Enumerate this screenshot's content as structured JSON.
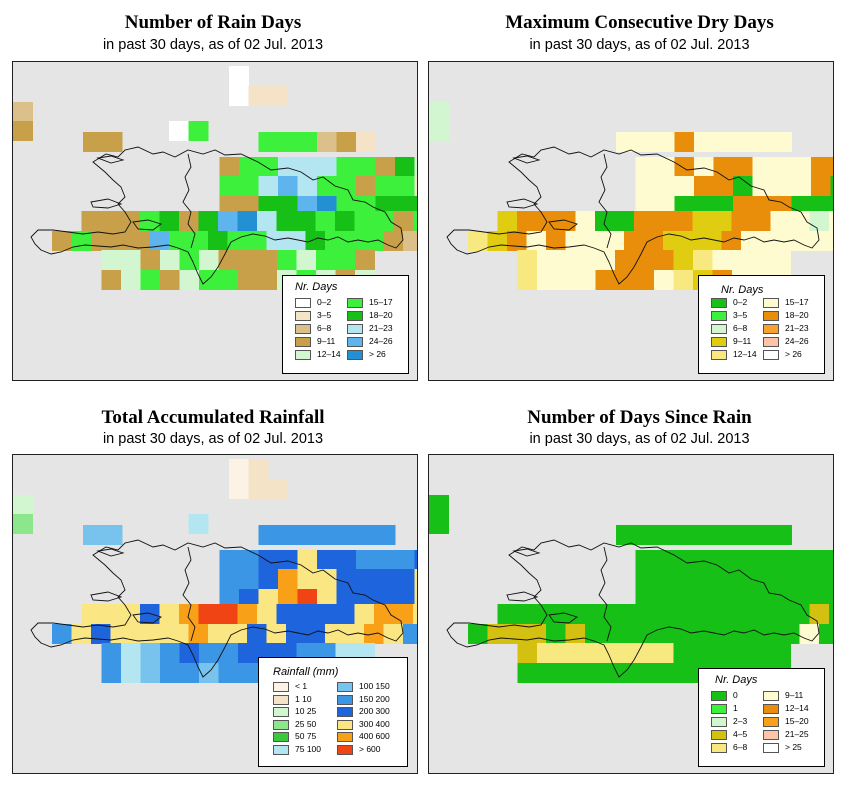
{
  "panels": [
    {
      "id": "rain-days",
      "title": "Number of Rain Days",
      "subtitle": "in past 30 days, as of  02 Jul. 2013",
      "legend": {
        "title": "Nr. Days",
        "items": [
          {
            "label": "0–2",
            "color": "#ffffff"
          },
          {
            "label": "3–5",
            "color": "#f5e3c8"
          },
          {
            "label": "6–8",
            "color": "#dcc089"
          },
          {
            "label": "9–11",
            "color": "#c8a04a"
          },
          {
            "label": "12–14",
            "color": "#d2f7d0"
          },
          {
            "label": "15–17",
            "color": "#3cf03c"
          },
          {
            "label": "18–20",
            "color": "#16c016"
          },
          {
            "label": "21–23",
            "color": "#b4e6f2"
          },
          {
            "label": "24–26",
            "color": "#5eb4ec"
          },
          {
            "label": "> 26",
            "color": "#2290d2"
          }
        ]
      },
      "grid": [
        "........W........",
        "........WBB......",
        "C..............................",
        "D.......MF.......",
        "...................",
        "DD.......FFFCDB.......",
        ".......DFFHHHFFDGEG..",
        ".......FFHIHFFDFFB...",
        ".......DDGGIJFFGGGBFF.",
        ".......FGGHIJHHGGGDFF.",
        "...DDDFGDGIJHGGFGFFDF..",
        "..DFDDDIFFGFFHHGFFFDC..",
        "...EEDEFEDDDFEFFD.",
        "...DEFDEFFDDEFEDE.....",
        "..............CCE..........",
        "...............EEE.........",
        "...............EE..."
      ]
    },
    {
      "id": "dry-days",
      "title": "Maximum Consecutive Dry Days",
      "subtitle": "in past 30 days, as of  02 Jul. 2013",
      "legend": {
        "title": "Nr. Days",
        "items": [
          {
            "label": "0–2",
            "color": "#16c016"
          },
          {
            "label": "3–5",
            "color": "#3cf03c"
          },
          {
            "label": "6–8",
            "color": "#d2f7d0"
          },
          {
            "label": "9–11",
            "color": "#e0cc10"
          },
          {
            "label": "12–14",
            "color": "#f8e880"
          },
          {
            "label": "15–17",
            "color": "#fffbd0"
          },
          {
            "label": "18–20",
            "color": "#e88e0a"
          },
          {
            "label": "21–23",
            "color": "#f8a030"
          },
          {
            "label": "24–26",
            "color": "#fcc4a8"
          },
          {
            "label": "> 26",
            "color": "#ffffff"
          }
        ]
      },
      "grid": [
        ".........................",
        "..................",
        "C.........................",
        "C.........................",
        "...............",
        "......FFFGFFFFF..........",
        ".......FFGFGGFFFGGF....",
        ".......FFFGGAFFFGAAF...",
        ".......FFAAAGGGAAAFFF..",
        "...FFGGAAAGGAAGAAGFFF..",
        "...DGGGFAAGGGDDGGFFCF..",
        "..EDGFGFFFGGDDDGFFFFF..",
        "...EFFFFGGGDEFFFF.",
        "...EFFFGGGFEDGFFF.....",
        "..............EE...........",
        "...............DD..........",
        "...............F...."
      ]
    },
    {
      "id": "total-rain",
      "title": "Total Accumulated Rainfall",
      "subtitle": "in past 30 days, as of  02 Jul. 2013",
      "legend": {
        "title": "Rainfall (mm)",
        "items": [
          {
            "label": "< 1",
            "color": "#fdf3e4"
          },
          {
            "label": "1   10",
            "color": "#f5e3c8"
          },
          {
            "label": "10   25",
            "color": "#d2f7d0"
          },
          {
            "label": "25   50",
            "color": "#8ce68c"
          },
          {
            "label": "50   75",
            "color": "#3cc83c"
          },
          {
            "label": "75   100",
            "color": "#b4e6f2"
          },
          {
            "label": "100   150",
            "color": "#78c2ee"
          },
          {
            "label": "150   200",
            "color": "#3c96e6"
          },
          {
            "label": "200   300",
            "color": "#1e64dc"
          },
          {
            "label": "300   400",
            "color": "#fae682"
          },
          {
            "label": "400   600",
            "color": "#f8a018"
          },
          {
            "label": "> 600",
            "color": "#f04414"
          }
        ]
      },
      "grid": [
        "........WB.......",
        "........WBB......",
        "C..............................",
        "D.......MF.......",
        "...................",
        "GG.......HHHHHHH.......",
        ".......HHIIJIIHHHII..",
        ".......HHIKJJIIIIJHH.",
        ".......HIJKLJIIIIJJHF.",
        ".......HJKLKJJIIJJJHF.",
        "...JJJIJKLLKJIIIIJKKJ..",
        "..HJIJJJJKJJIJIIJJKJH..",
        "...HFGHIHHIIIHHFF.",
        "...HFGHHGHHHFFFG......",
        "..............GGG..........",
        "...............FF..........",
        "...............GG..."
      ]
    },
    {
      "id": "days-since",
      "title": "Number of Days Since Rain",
      "subtitle": "in past 30 days, as of  02 Jul. 2013",
      "legend": {
        "title": "Nr. Days",
        "items": [
          {
            "label": "0",
            "color": "#16c016"
          },
          {
            "label": "1",
            "color": "#3cf03c"
          },
          {
            "label": "2–3",
            "color": "#d2f7d0"
          },
          {
            "label": "4–5",
            "color": "#d4c010"
          },
          {
            "label": "6–8",
            "color": "#f8e880"
          },
          {
            "label": "9–11",
            "color": "#fffbd0"
          },
          {
            "label": "12–14",
            "color": "#e88e0a"
          },
          {
            "label": "15–20",
            "color": "#f8a018"
          },
          {
            "label": "21–25",
            "color": "#fcc4a8"
          },
          {
            "label": "> 25",
            "color": "#ffffff"
          }
        ]
      },
      "grid": [
        ".........................",
        "..................",
        "A.........................",
        "A.........................",
        "...............",
        "......AAAAAAAAA..........",
        ".......AAAAAAAAAAAA....",
        ".......AAAAAAAAAAAAA...",
        ".......AAAAAAAAAAAAAA..",
        "...AAAAAAAAAAAAAAAAAA..",
        "...AAAAAAAAAAAAAAAADA..",
        "..ADDDADAAAAAAAAAAAFA..",
        "...DEEEEEEEAAAAAA.",
        "...AAAAAAAAAAAAAA.....",
        "..............AAA..........",
        "...............AA..........",
        "...............A...."
      ]
    }
  ]
}
